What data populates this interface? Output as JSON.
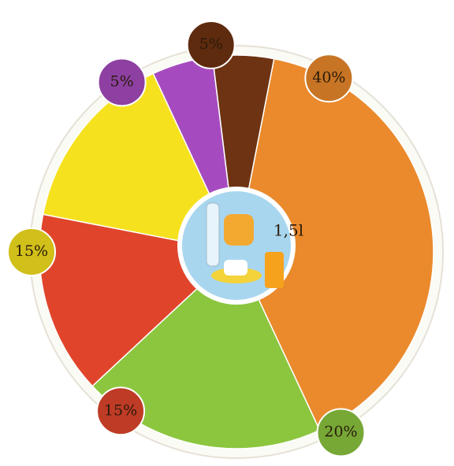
{
  "chart_data": {
    "type": "pie",
    "values": [
      40,
      20,
      15,
      15,
      5,
      5
    ],
    "value_labels": [
      "40%",
      "20%",
      "15%",
      "15%",
      "5%",
      "5%"
    ],
    "colors": [
      "#ea8a2c",
      "#8cc63f",
      "#e0452b",
      "#f6e11e",
      "#a64bbf",
      "#6e3312"
    ],
    "annotation": "1,5l"
  }
}
